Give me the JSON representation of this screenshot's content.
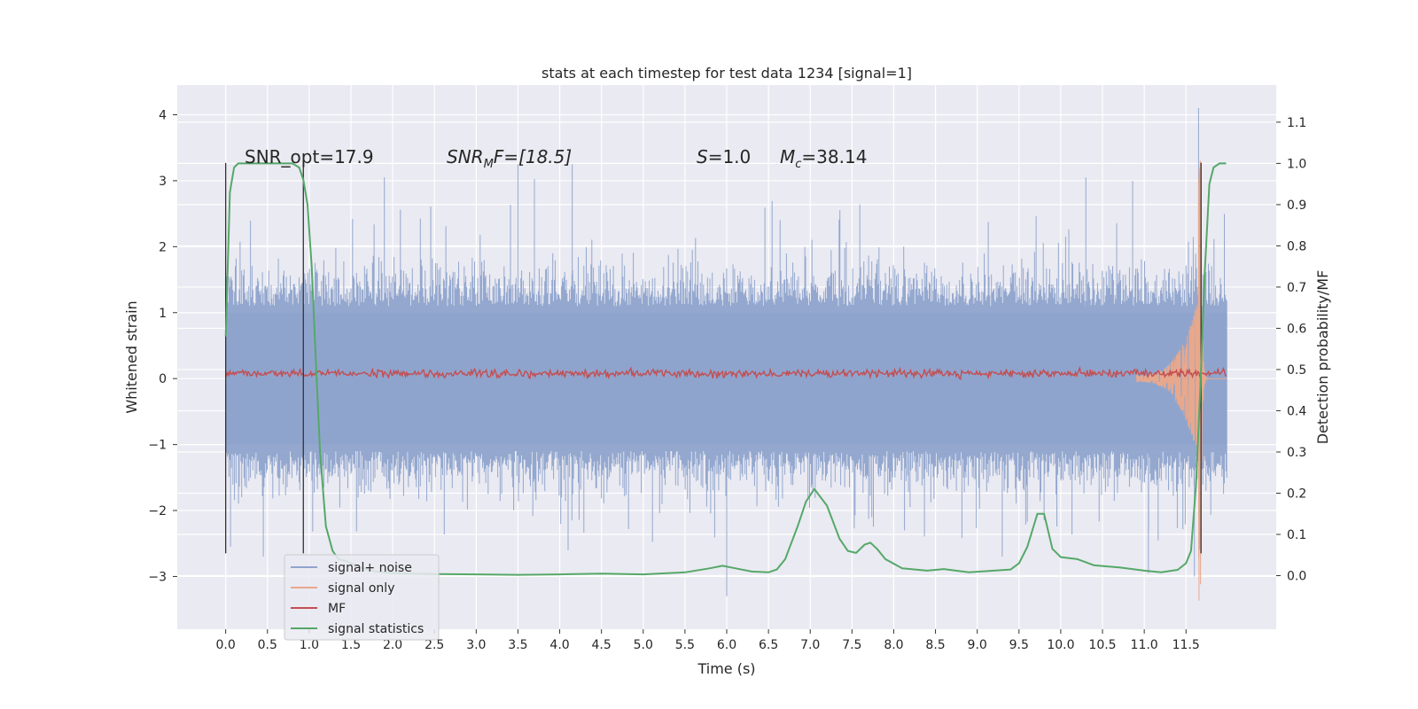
{
  "chart_data": {
    "type": "line",
    "title": "stats at each timestep for test data 1234 [signal=1]",
    "xlabel": "Time (s)",
    "ylabel": "Whitened strain",
    "y2label": "Detection probability/MF",
    "xlim": [
      -0.58,
      12.58
    ],
    "ylim": [
      -3.8,
      4.45
    ],
    "y2lim": [
      -0.13,
      1.19
    ],
    "x_ticks": [
      "0.0",
      "0.5",
      "1.0",
      "1.5",
      "2.0",
      "2.5",
      "3.0",
      "3.5",
      "4.0",
      "4.5",
      "5.0",
      "5.5",
      "6.0",
      "6.5",
      "7.0",
      "7.5",
      "8.0",
      "8.5",
      "9.0",
      "9.5",
      "10.0",
      "10.5",
      "11.0",
      "11.5"
    ],
    "y_ticks": [
      "4",
      "3",
      "2",
      "1",
      "0",
      "−1",
      "−2",
      "−3"
    ],
    "y2_ticks": [
      "1.1",
      "1.0",
      "0.9",
      "0.8",
      "0.7",
      "0.6",
      "0.5",
      "0.4",
      "0.3",
      "0.2",
      "0.1",
      "0.0"
    ],
    "grid": true,
    "legend_position": "lower-left",
    "annotations": {
      "snr_opt": "SNR_opt=17.9",
      "snr_mf_main": "SNR",
      "snr_mf_sub": "M",
      "snr_mf_rest": "F=[18.5]",
      "s_main": "S",
      "s_rest": "=1.0",
      "mc_main": "M",
      "mc_sub": "c",
      "mc_rest": "=38.14"
    },
    "colors": {
      "signal_noise": "#8fa4cc",
      "signal_only": "#e8a88c",
      "mf": "#c44e52",
      "statistics": "#55a868",
      "vline": "#333333",
      "plot_bg": "#eaeaf2"
    },
    "series": [
      {
        "name": "signal+ noise",
        "axis": "left",
        "style": "noise-band",
        "x_range": [
          0.0,
          11.99
        ],
        "envelope": [
          -1.0,
          1.0
        ],
        "spikes_max": 4.1,
        "spikes_min": -3.3
      },
      {
        "name": "signal only",
        "axis": "left",
        "style": "chirp",
        "x_range": [
          10.9,
          11.99
        ],
        "peak_time": 11.68,
        "peak": 3.35,
        "trough": -3.45
      },
      {
        "name": "MF",
        "axis": "left",
        "style": "flat-noise",
        "x_range": [
          0.0,
          11.99
        ],
        "level": 0.08
      },
      {
        "name": "signal statistics",
        "axis": "right",
        "style": "line",
        "x": [
          0.0,
          0.05,
          0.1,
          0.15,
          0.2,
          0.3,
          0.5,
          0.8,
          0.88,
          0.93,
          0.98,
          1.03,
          1.08,
          1.13,
          1.2,
          1.28,
          1.35,
          1.45,
          1.6,
          1.8,
          2.0,
          2.5,
          3.0,
          3.5,
          4.0,
          4.5,
          5.0,
          5.5,
          5.8,
          5.95,
          6.1,
          6.3,
          6.5,
          6.6,
          6.7,
          6.85,
          6.95,
          7.05,
          7.2,
          7.35,
          7.45,
          7.55,
          7.65,
          7.72,
          7.8,
          7.9,
          8.1,
          8.4,
          8.6,
          8.9,
          9.2,
          9.4,
          9.5,
          9.6,
          9.72,
          9.8,
          9.9,
          10.0,
          10.2,
          10.4,
          10.7,
          11.0,
          11.2,
          11.4,
          11.5,
          11.56,
          11.62,
          11.67,
          11.72,
          11.78,
          11.83,
          11.9,
          11.98
        ],
        "y": [
          0.58,
          0.93,
          0.99,
          1.0,
          1.0,
          1.0,
          1.0,
          1.0,
          0.99,
          0.96,
          0.9,
          0.75,
          0.52,
          0.3,
          0.12,
          0.06,
          0.04,
          0.035,
          0.02,
          0.01,
          0.006,
          0.004,
          0.003,
          0.002,
          0.003,
          0.005,
          0.003,
          0.008,
          0.018,
          0.024,
          0.018,
          0.01,
          0.008,
          0.015,
          0.04,
          0.12,
          0.18,
          0.21,
          0.17,
          0.09,
          0.06,
          0.055,
          0.075,
          0.08,
          0.065,
          0.04,
          0.018,
          0.012,
          0.016,
          0.008,
          0.012,
          0.015,
          0.03,
          0.07,
          0.15,
          0.15,
          0.065,
          0.045,
          0.04,
          0.025,
          0.02,
          0.012,
          0.008,
          0.014,
          0.03,
          0.06,
          0.22,
          0.45,
          0.72,
          0.95,
          0.99,
          1.0,
          1.0
        ]
      }
    ],
    "vlines": [
      {
        "x": 0.0,
        "ymin": -2.65,
        "ymax": 3.27,
        "axis": "left"
      },
      {
        "x": 0.93,
        "ymin": -2.65,
        "ymax": 3.27,
        "axis": "left"
      },
      {
        "x": 11.68,
        "ymin": -2.65,
        "ymax": 3.27,
        "axis": "left"
      }
    ]
  }
}
